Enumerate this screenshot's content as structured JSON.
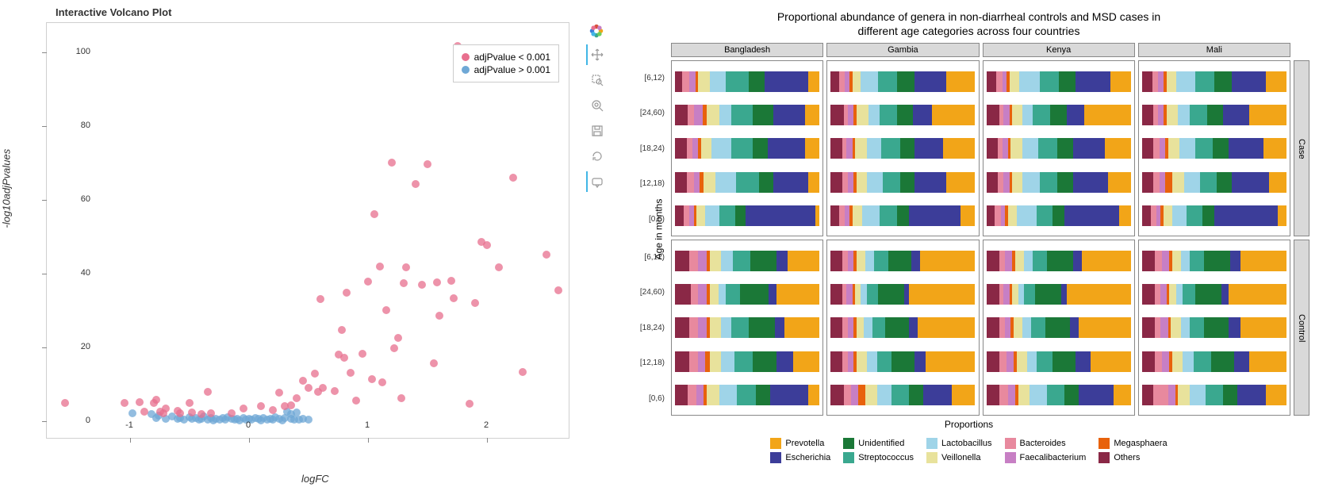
{
  "volcano": {
    "title": "Interactive Volcano Plot",
    "xlabel": "logFC",
    "ylabel": "-log10adjPvalues",
    "xlim": [
      -1.7,
      2.7
    ],
    "ylim": [
      -5,
      108
    ],
    "xticks": [
      -1,
      0,
      1,
      2
    ],
    "yticks": [
      0,
      20,
      40,
      60,
      80,
      100
    ],
    "marker_size": 10,
    "legend": [
      {
        "label": "adjPvalue < 0.001",
        "color": "#e86f8e"
      },
      {
        "label": "adjPvalue > 0.001",
        "color": "#6fa8d6"
      }
    ],
    "colors": {
      "sig": "#e86f8e",
      "nonsig": "#6fa8d6"
    },
    "points_sig": [
      [
        -1.55,
        5
      ],
      [
        -1.05,
        4.8
      ],
      [
        -0.92,
        5.2
      ],
      [
        -0.88,
        2.6
      ],
      [
        -0.8,
        4.9
      ],
      [
        -0.78,
        5.8
      ],
      [
        -0.75,
        2.5
      ],
      [
        -0.72,
        2.2
      ],
      [
        -0.7,
        3.5
      ],
      [
        -0.6,
        2.8
      ],
      [
        -0.58,
        2
      ],
      [
        -0.5,
        5
      ],
      [
        -0.48,
        2.4
      ],
      [
        -0.4,
        1.8
      ],
      [
        -0.35,
        8
      ],
      [
        -0.32,
        2.1
      ],
      [
        -0.15,
        2.2
      ],
      [
        -0.05,
        3.5
      ],
      [
        0.1,
        4
      ],
      [
        0.2,
        3.0
      ],
      [
        0.25,
        7.6
      ],
      [
        0.3,
        4
      ],
      [
        0.35,
        4.2
      ],
      [
        0.4,
        6.2
      ],
      [
        0.45,
        11
      ],
      [
        0.5,
        9
      ],
      [
        0.55,
        12.8
      ],
      [
        0.58,
        8
      ],
      [
        0.6,
        33
      ],
      [
        0.62,
        9.0
      ],
      [
        0.72,
        8.2
      ],
      [
        0.75,
        18
      ],
      [
        0.78,
        24.8
      ],
      [
        0.8,
        17.2
      ],
      [
        0.82,
        34.8
      ],
      [
        0.85,
        13
      ],
      [
        0.9,
        5.5
      ],
      [
        0.95,
        18.2
      ],
      [
        1.0,
        37.9
      ],
      [
        1.03,
        11.3
      ],
      [
        1.05,
        56.2
      ],
      [
        1.1,
        42
      ],
      [
        1.12,
        10.4
      ],
      [
        1.15,
        30
      ],
      [
        1.2,
        70.2
      ],
      [
        1.22,
        19.8
      ],
      [
        1.25,
        22.6
      ],
      [
        1.28,
        6.1
      ],
      [
        1.3,
        37.3
      ],
      [
        1.32,
        41.6
      ],
      [
        1.4,
        64.3
      ],
      [
        1.45,
        36.9
      ],
      [
        1.5,
        69.7
      ],
      [
        1.55,
        15.6
      ],
      [
        1.58,
        37.7
      ],
      [
        1.6,
        28.5
      ],
      [
        1.7,
        38.1
      ],
      [
        1.72,
        33.4
      ],
      [
        1.75,
        101.8
      ],
      [
        1.85,
        4.6
      ],
      [
        1.9,
        32.0
      ],
      [
        1.95,
        48.5
      ],
      [
        2.0,
        47.7
      ],
      [
        2.1,
        41.7
      ],
      [
        2.22,
        66.0
      ],
      [
        2.3,
        13.4
      ],
      [
        2.5,
        45.1
      ],
      [
        2.6,
        35.4
      ]
    ],
    "points_nonsig": [
      [
        -0.98,
        2.2
      ],
      [
        -0.82,
        1.8
      ],
      [
        -0.78,
        0.9
      ],
      [
        -0.76,
        1.5
      ],
      [
        -0.7,
        0.7
      ],
      [
        -0.65,
        1.2
      ],
      [
        -0.6,
        0.6
      ],
      [
        -0.58,
        0.9
      ],
      [
        -0.55,
        0.4
      ],
      [
        -0.5,
        1.1
      ],
      [
        -0.48,
        0.5
      ],
      [
        -0.45,
        0.9
      ],
      [
        -0.42,
        0.3
      ],
      [
        -0.4,
        0.7
      ],
      [
        -0.38,
        1.2
      ],
      [
        -0.35,
        0.4
      ],
      [
        -0.32,
        0.9
      ],
      [
        -0.3,
        0.2
      ],
      [
        -0.28,
        0.6
      ],
      [
        -0.25,
        0.3
      ],
      [
        -0.22,
        0.8
      ],
      [
        -0.2,
        0.4
      ],
      [
        -0.18,
        1.0
      ],
      [
        -0.15,
        0.5
      ],
      [
        -0.12,
        0.3
      ],
      [
        -0.1,
        0.7
      ],
      [
        -0.08,
        0.2
      ],
      [
        -0.05,
        0.9
      ],
      [
        -0.03,
        0.4
      ],
      [
        0,
        0.6
      ],
      [
        0.02,
        0.3
      ],
      [
        0.05,
        0.8
      ],
      [
        0.08,
        0.5
      ],
      [
        0.1,
        0.2
      ],
      [
        0.12,
        0.9
      ],
      [
        0.15,
        0.4
      ],
      [
        0.18,
        0.7
      ],
      [
        0.2,
        0.3
      ],
      [
        0.22,
        1.0
      ],
      [
        0.25,
        0.5
      ],
      [
        0.28,
        0.2
      ],
      [
        0.3,
        0.8
      ],
      [
        0.32,
        2.5
      ],
      [
        0.35,
        0.6
      ],
      [
        0.35,
        1.9
      ],
      [
        0.38,
        0.3
      ],
      [
        0.4,
        2.3
      ],
      [
        0.42,
        0.4
      ],
      [
        0.45,
        0.7
      ],
      [
        0.5,
        0.3
      ]
    ]
  },
  "facet": {
    "title_line1": "Proportional abundance of genera in non-diarrheal controls and MSD cases in",
    "title_line2": "different age categories across four countries",
    "ylabel": "Age in months",
    "xlabel": "Proportions",
    "countries": [
      "Bangladesh",
      "Gambia",
      "Kenya",
      "Mali"
    ],
    "conditions": [
      "Case",
      "Control"
    ],
    "age_groups": [
      "[6,12)",
      "[24,60)",
      "[18,24)",
      "[12,18)",
      "[0,6)"
    ],
    "genera": [
      {
        "name": "Prevotella",
        "color": "#f2a518"
      },
      {
        "name": "Unidentified",
        "color": "#1b7837"
      },
      {
        "name": "Lactobacillus",
        "color": "#9fd4e8"
      },
      {
        "name": "Bacteroides",
        "color": "#e8899e"
      },
      {
        "name": "Megasphaera",
        "color": "#e8620c"
      },
      {
        "name": "Escherichia",
        "color": "#3c3d99"
      },
      {
        "name": "Streptococcus",
        "color": "#3aa88f"
      },
      {
        "name": "Veillonella",
        "color": "#e8e29c"
      },
      {
        "name": "Faecalibacterium",
        "color": "#c77fc4"
      },
      {
        "name": "Others",
        "color": "#8a2846"
      }
    ],
    "data": {
      "Case": {
        "Bangladesh": [
          [
            8,
            11,
            11,
            5,
            2,
            30,
            16,
            8,
            4,
            5
          ],
          [
            10,
            14,
            8,
            4,
            3,
            22,
            15,
            9,
            6,
            9
          ],
          [
            10,
            10,
            14,
            4,
            2,
            26,
            15,
            7,
            4,
            8
          ],
          [
            8,
            10,
            14,
            5,
            3,
            24,
            16,
            8,
            4,
            8
          ],
          [
            3,
            7,
            10,
            4,
            2,
            48,
            11,
            6,
            3,
            6
          ]
        ],
        "Gambia": [
          [
            20,
            12,
            12,
            4,
            2,
            22,
            13,
            6,
            3,
            6
          ],
          [
            30,
            11,
            8,
            3,
            2,
            13,
            12,
            8,
            4,
            9
          ],
          [
            22,
            10,
            10,
            3,
            2,
            20,
            13,
            8,
            4,
            8
          ],
          [
            20,
            10,
            11,
            4,
            2,
            22,
            12,
            7,
            4,
            8
          ],
          [
            10,
            8,
            12,
            4,
            2,
            36,
            12,
            7,
            3,
            6
          ]
        ],
        "Kenya": [
          [
            14,
            12,
            14,
            4,
            2,
            24,
            13,
            7,
            3,
            7
          ],
          [
            32,
            12,
            7,
            3,
            2,
            12,
            12,
            7,
            4,
            9
          ],
          [
            18,
            11,
            11,
            3,
            2,
            22,
            13,
            8,
            4,
            8
          ],
          [
            16,
            11,
            12,
            4,
            2,
            24,
            12,
            7,
            4,
            8
          ],
          [
            8,
            8,
            14,
            4,
            2,
            38,
            11,
            6,
            3,
            6
          ]
        ],
        "Mali": [
          [
            14,
            12,
            13,
            4,
            2,
            24,
            13,
            7,
            4,
            7
          ],
          [
            26,
            11,
            8,
            3,
            2,
            18,
            12,
            8,
            4,
            8
          ],
          [
            16,
            11,
            11,
            4,
            2,
            24,
            12,
            8,
            4,
            8
          ],
          [
            12,
            10,
            11,
            4,
            5,
            26,
            12,
            8,
            4,
            8
          ],
          [
            6,
            8,
            10,
            4,
            2,
            44,
            11,
            6,
            3,
            6
          ]
        ]
      },
      "Control": {
        "Bangladesh": [
          [
            22,
            18,
            8,
            6,
            2,
            8,
            12,
            8,
            6,
            10
          ],
          [
            30,
            20,
            5,
            5,
            2,
            5,
            10,
            6,
            6,
            11
          ],
          [
            24,
            18,
            7,
            6,
            2,
            7,
            12,
            8,
            6,
            10
          ],
          [
            18,
            16,
            9,
            6,
            3,
            12,
            13,
            8,
            5,
            10
          ],
          [
            8,
            10,
            12,
            6,
            2,
            26,
            13,
            9,
            5,
            9
          ]
        ],
        "Gambia": [
          [
            38,
            16,
            6,
            4,
            2,
            6,
            10,
            6,
            4,
            8
          ],
          [
            46,
            18,
            4,
            3,
            2,
            3,
            8,
            4,
            4,
            8
          ],
          [
            40,
            16,
            6,
            4,
            2,
            6,
            9,
            5,
            4,
            8
          ],
          [
            34,
            16,
            7,
            4,
            2,
            8,
            10,
            7,
            4,
            8
          ],
          [
            16,
            10,
            10,
            5,
            5,
            20,
            12,
            8,
            5,
            9
          ]
        ],
        "Kenya": [
          [
            34,
            18,
            6,
            4,
            2,
            6,
            10,
            6,
            5,
            9
          ],
          [
            44,
            18,
            4,
            3,
            2,
            4,
            8,
            4,
            4,
            9
          ],
          [
            36,
            17,
            6,
            4,
            2,
            6,
            10,
            6,
            4,
            9
          ],
          [
            28,
            16,
            7,
            5,
            2,
            10,
            11,
            7,
            5,
            9
          ],
          [
            12,
            10,
            12,
            6,
            2,
            24,
            12,
            8,
            5,
            9
          ]
        ],
        "Mali": [
          [
            32,
            18,
            6,
            5,
            2,
            7,
            10,
            6,
            5,
            9
          ],
          [
            40,
            18,
            4,
            4,
            2,
            5,
            9,
            5,
            4,
            9
          ],
          [
            32,
            17,
            6,
            4,
            2,
            8,
            10,
            7,
            5,
            9
          ],
          [
            26,
            16,
            8,
            5,
            2,
            10,
            12,
            7,
            5,
            9
          ],
          [
            14,
            10,
            11,
            10,
            2,
            20,
            12,
            8,
            5,
            8
          ]
        ]
      }
    }
  },
  "toolbar": {
    "tools": [
      "pan",
      "box-zoom",
      "wheel-zoom",
      "save",
      "reset",
      "hover"
    ]
  }
}
